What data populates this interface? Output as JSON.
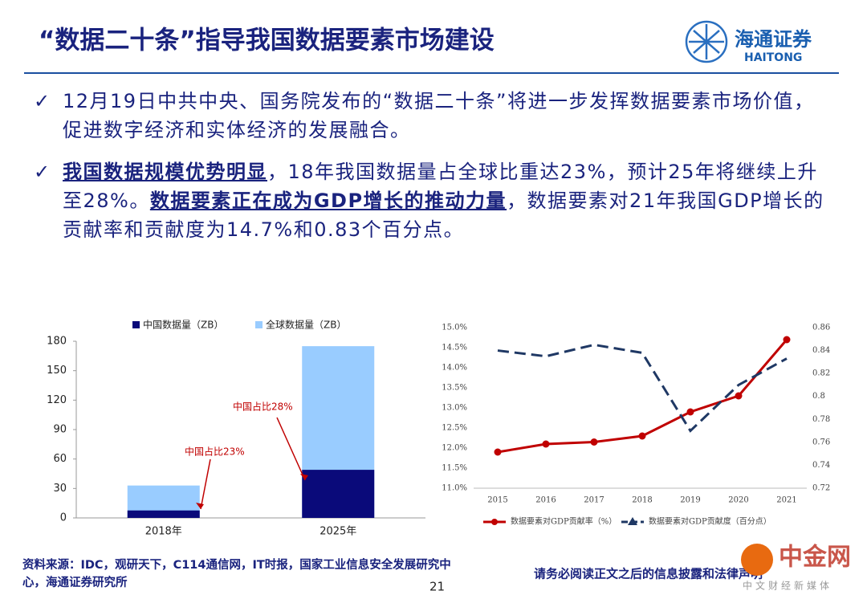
{
  "header": {
    "title": "“数据二十条”指导我国数据要素市场建设",
    "logo_cn": "海通证券",
    "logo_en": "HAITONG"
  },
  "bullets": [
    {
      "parts": [
        {
          "text": "12月19日中共中央、国务院发布的“数据二十条”将进一步发挥数据要素市场价值，促进数字经济和实体经济的发展融合。",
          "emphasis": false
        }
      ]
    },
    {
      "parts": [
        {
          "text": "我国数据规模优势明显",
          "emphasis": true
        },
        {
          "text": "，18年我国数据量占全球比重达23%，预计25年将继续上升至28%。",
          "emphasis": false
        },
        {
          "text": "数据要素正在成为GDP增长的推动力量",
          "emphasis": true
        },
        {
          "text": "，数据要素对21年我国GDP增长的贡献率和贡献度为14.7%和0.83个百分点。",
          "emphasis": false
        }
      ]
    }
  ],
  "chart_data": [
    {
      "type": "bar",
      "categories": [
        "2018年",
        "2025年"
      ],
      "series": [
        {
          "name": "全球数据量（ZB）",
          "color": "#99ccff",
          "values": [
            33,
            175
          ]
        },
        {
          "name": "中国数据量（ZB）",
          "color": "#0a0a7a",
          "values": [
            7.6,
            49
          ]
        }
      ],
      "ylim": [
        0,
        180
      ],
      "yticks": [
        0,
        30,
        60,
        90,
        120,
        150,
        180
      ],
      "annotations": [
        "中国占比23%",
        "中国占比28%"
      ]
    },
    {
      "type": "line",
      "categories": [
        "2015",
        "2016",
        "2017",
        "2018",
        "2019",
        "2020",
        "2021"
      ],
      "series": [
        {
          "name": "数据要素对GDP贡献率（%）",
          "color": "#c00000",
          "values": [
            11.9,
            12.1,
            12.15,
            12.3,
            12.9,
            13.3,
            14.7
          ]
        },
        {
          "name": "数据要素对GDP贡献度（百分点）",
          "color": "#1f3864",
          "axis": "y2",
          "values": [
            0.84,
            0.835,
            0.845,
            0.838,
            0.77,
            0.81,
            0.833
          ]
        }
      ],
      "ylim": [
        11,
        15
      ],
      "yticks": [
        {
          "value": 11,
          "label": "11.0%"
        },
        {
          "value": 11.5,
          "label": "11.5%"
        },
        {
          "value": 12,
          "label": "12.0%"
        },
        {
          "value": 12.5,
          "label": "12.5%"
        },
        {
          "value": 13,
          "label": "13.0%"
        },
        {
          "value": 13.5,
          "label": "13.5%"
        },
        {
          "value": 14,
          "label": "14.0%"
        },
        {
          "value": 14.5,
          "label": "14.5%"
        },
        {
          "value": 15,
          "label": "15.0%"
        }
      ],
      "y2lim": [
        0.72,
        0.86
      ],
      "y2ticks": [
        0.72,
        0.74,
        0.76,
        0.78,
        0.8,
        0.82,
        0.84,
        0.86
      ]
    }
  ],
  "footer": {
    "source": "资料来源：IDC，观研天下，C114通信网，IT时报，国家工业信息安全发展研究中心，海通证券研究所",
    "page": "21",
    "disclaimer": "请务必阅读正文之后的信息披露和法律声明"
  },
  "watermark": {
    "name": "中金网",
    "tagline": "中文财经新媒体"
  }
}
